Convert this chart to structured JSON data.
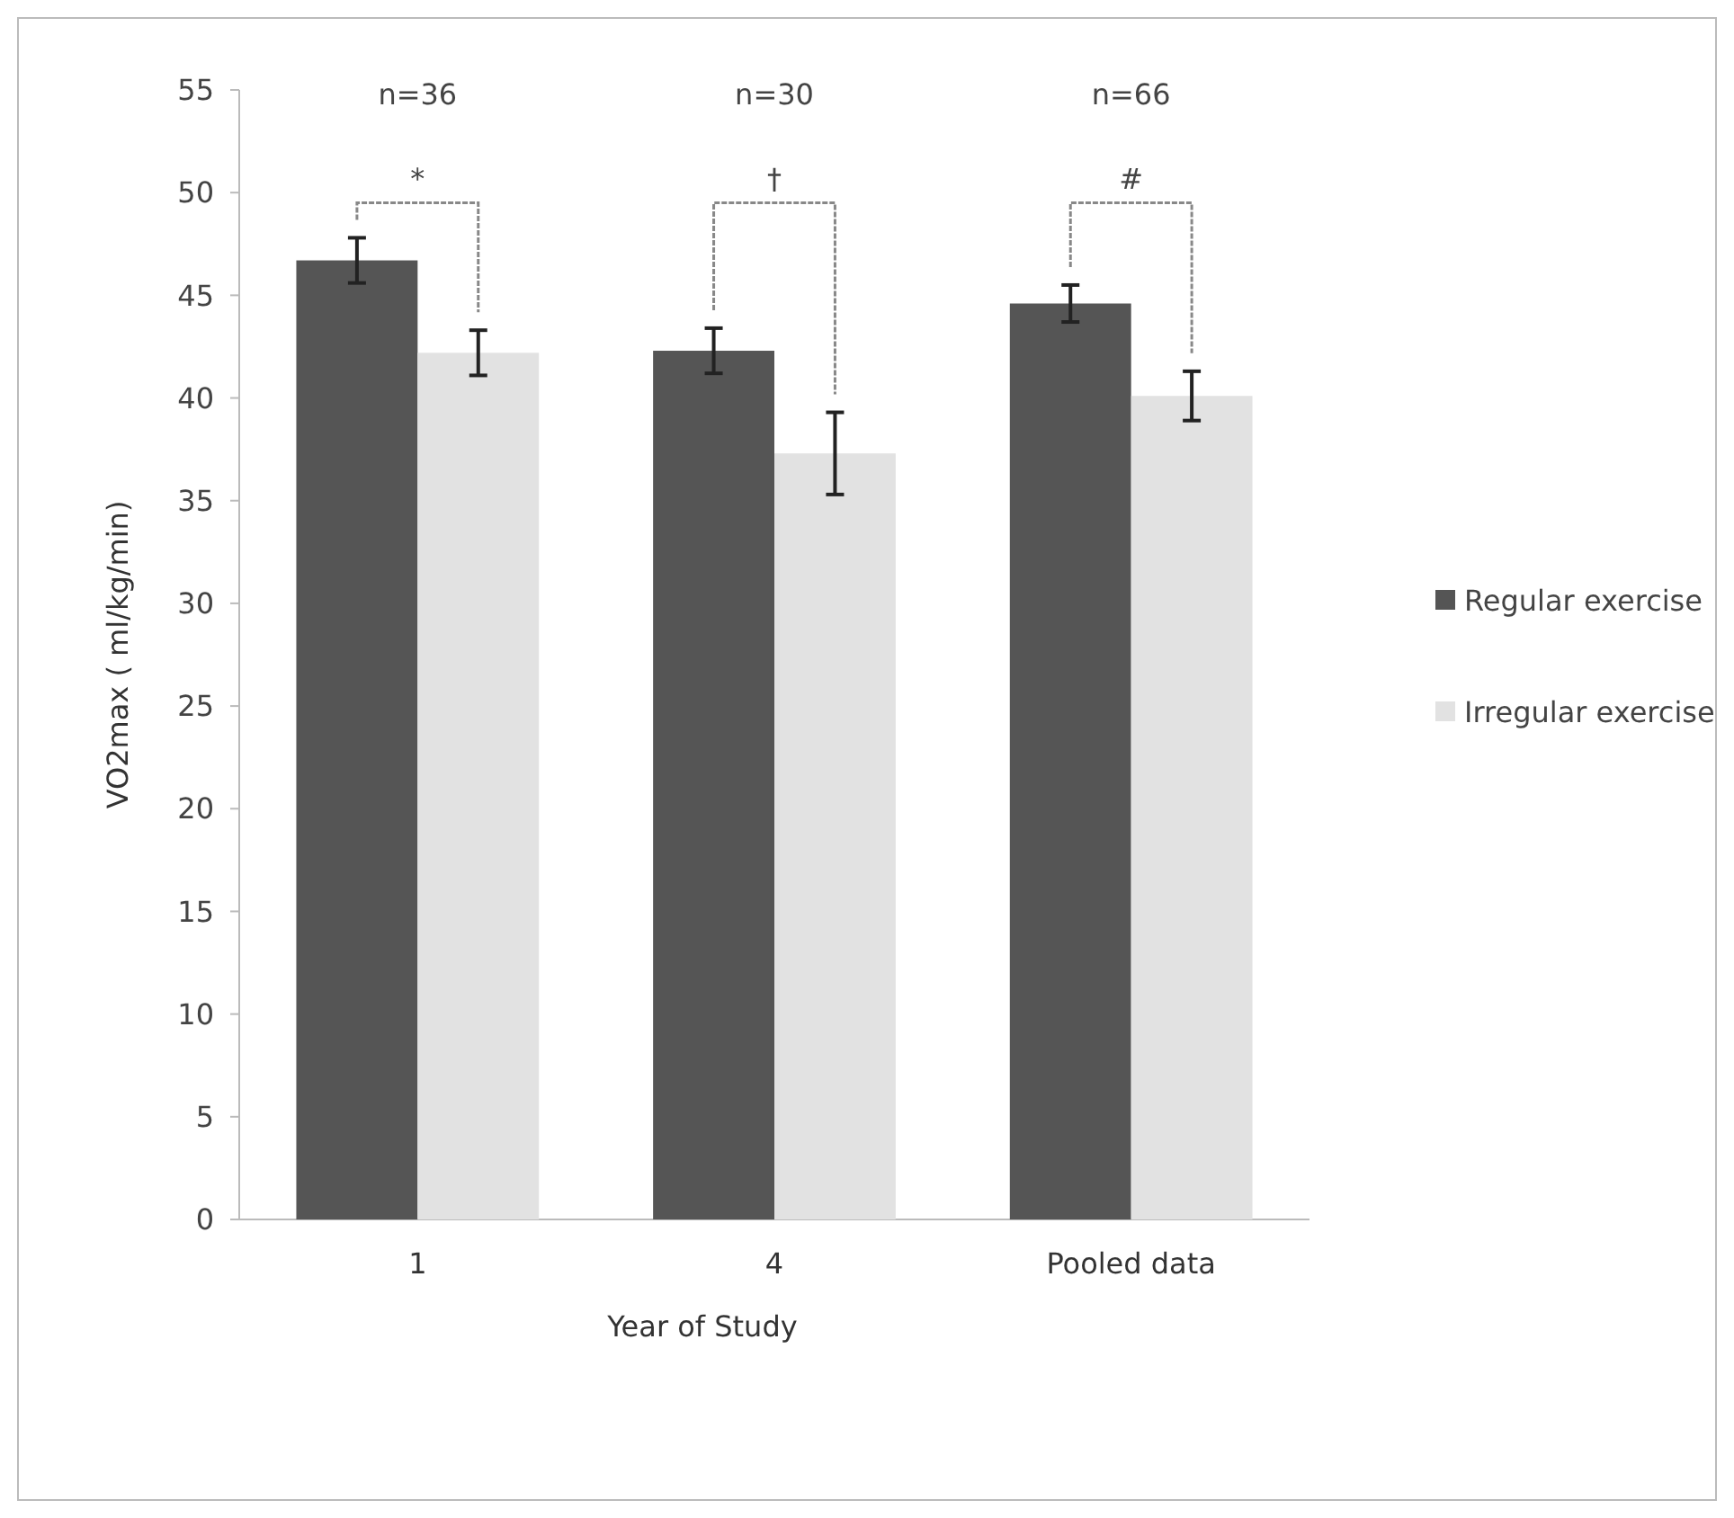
{
  "chart_data": {
    "type": "bar",
    "xlabel": "Year of Study",
    "ylabel": "VO2max ( ml/kg/min)",
    "categories": [
      "1",
      "4",
      "Pooled data"
    ],
    "series": [
      {
        "name": "Regular exercise",
        "color": "#555555",
        "values": [
          46.7,
          42.3,
          44.6
        ],
        "errors": [
          1.1,
          1.1,
          0.9
        ]
      },
      {
        "name": "Irregular exercise",
        "color": "#e2e2e2",
        "values": [
          42.2,
          37.3,
          40.1
        ],
        "errors": [
          1.1,
          2.0,
          1.2
        ]
      }
    ],
    "ylim": [
      0,
      55
    ],
    "yticks": [
      0,
      5,
      10,
      15,
      20,
      25,
      30,
      35,
      40,
      45,
      50,
      55
    ],
    "legend": "right",
    "annotations": [
      "n=36",
      "n=30",
      "n=66",
      "*",
      "†",
      "#"
    ]
  }
}
